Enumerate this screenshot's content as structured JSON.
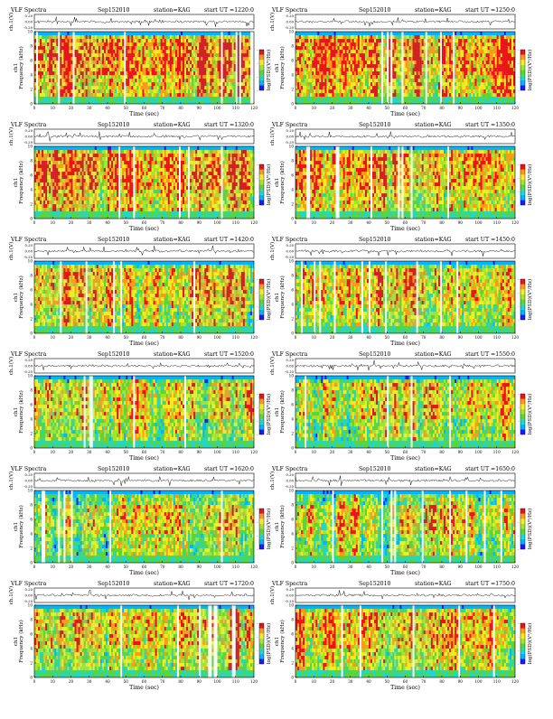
{
  "page": {
    "background": "#ffffff"
  },
  "colormap": [
    "#1a1aff",
    "#00b4ff",
    "#22d6c8",
    "#5cd43a",
    "#a6e432",
    "#f2ee22",
    "#ff9a1a",
    "#e8141a"
  ],
  "chart_data": [
    {
      "type": "heatmap",
      "title": "VLF Spectra",
      "date": "Sep152010",
      "station": "station=KAG",
      "start": "start  UT  =1220:0",
      "waveform_label": "ch.1(V)",
      "waveform_ticks": [
        "0.20",
        "0.00",
        "-0.20"
      ],
      "ylabel": "ch1\nFrequency  (kHz)",
      "y_ticks": [
        0,
        2,
        4,
        6,
        8,
        10
      ],
      "ylim": [
        0,
        10
      ],
      "xlabel": "Time  (sec)",
      "x_ticks": [
        0,
        10,
        20,
        30,
        40,
        50,
        60,
        70,
        80,
        90,
        100,
        110,
        120
      ],
      "xlim": [
        0,
        120
      ],
      "colorbar_label": "log(PSD)(V²/Hz)",
      "colorbar_ticks": [
        "-",
        "-",
        "-",
        "-"
      ],
      "band_kHz": [
        1,
        9
      ],
      "activity": 0.85,
      "seed": 11
    },
    {
      "type": "heatmap",
      "title": "VLF Spectra",
      "date": "Sep152010",
      "station": "station=KAG",
      "start": "start  UT  =1250:0",
      "waveform_label": "ch.1(V)",
      "waveform_ticks": [
        "0.20",
        "0.00",
        "-0.20"
      ],
      "ylabel": "ch1\nFrequency  (kHz)",
      "y_ticks": [
        0,
        2,
        4,
        6,
        8,
        10
      ],
      "ylim": [
        0,
        10
      ],
      "xlabel": "Time  (sec)",
      "x_ticks": [
        0,
        10,
        20,
        30,
        40,
        50,
        60,
        70,
        80,
        90,
        100,
        110,
        120
      ],
      "xlim": [
        0,
        120
      ],
      "colorbar_label": "log(PSD)(V²/Hz)",
      "colorbar_ticks": [
        "-",
        "-",
        "-",
        "-"
      ],
      "band_kHz": [
        1,
        9
      ],
      "activity": 0.8,
      "seed": 23
    },
    {
      "type": "heatmap",
      "title": "VLF Spectra",
      "date": "Sep152010",
      "station": "station=KAG",
      "start": "start  UT  =1320:0",
      "waveform_label": "ch.1(V)",
      "waveform_ticks": [
        "0.20",
        "0.00",
        "-0.20"
      ],
      "ylabel": "ch1\nFrequency  (kHz)",
      "y_ticks": [
        0,
        2,
        4,
        6,
        8,
        10
      ],
      "ylim": [
        0,
        10
      ],
      "xlabel": "Time  (sec)",
      "x_ticks": [
        0,
        10,
        20,
        30,
        40,
        50,
        60,
        70,
        80,
        90,
        100,
        110,
        120
      ],
      "xlim": [
        0,
        120
      ],
      "colorbar_label": "log(PSD)(V²/Hz)",
      "colorbar_ticks": [
        "-",
        "-",
        "-",
        "-"
      ],
      "band_kHz": [
        1,
        9
      ],
      "activity": 0.78,
      "seed": 37
    },
    {
      "type": "heatmap",
      "title": "VLF Spectra",
      "date": "Sep152010",
      "station": "station=KAG",
      "start": "start  UT  =1350:0",
      "waveform_label": "ch.1(V)",
      "waveform_ticks": [
        "0.20",
        "0.00",
        "-0.20"
      ],
      "ylabel": "ch1\nFrequency  (kHz)",
      "y_ticks": [
        0,
        2,
        4,
        6,
        8,
        10
      ],
      "ylim": [
        0,
        10
      ],
      "xlabel": "Time  (sec)",
      "x_ticks": [
        0,
        10,
        20,
        30,
        40,
        50,
        60,
        70,
        80,
        90,
        100,
        110,
        120
      ],
      "xlim": [
        0,
        120
      ],
      "colorbar_label": "log(PSD)(V²/Hz)",
      "colorbar_ticks": [
        "-",
        "-",
        "-",
        "-"
      ],
      "band_kHz": [
        1,
        9
      ],
      "activity": 0.6,
      "seed": 41
    },
    {
      "type": "heatmap",
      "title": "VLF Spectra",
      "date": "Sep152010",
      "station": "station=KAG",
      "start": "start  UT  =1420:0",
      "waveform_label": "ch.1(V)",
      "waveform_ticks": [
        "0.20",
        "0.00",
        "-0.20"
      ],
      "ylabel": "ch1\nFrequency  (kHz)",
      "y_ticks": [
        0,
        2,
        4,
        6,
        8,
        10
      ],
      "ylim": [
        0,
        10
      ],
      "xlabel": "Time  (sec)",
      "x_ticks": [
        0,
        10,
        20,
        30,
        40,
        50,
        60,
        70,
        80,
        90,
        100,
        110,
        120
      ],
      "xlim": [
        0,
        120
      ],
      "colorbar_label": "log(PSD)(V²/Hz)",
      "colorbar_ticks": [
        "-",
        "-",
        "-",
        "-"
      ],
      "band_kHz": [
        1,
        9
      ],
      "activity": 0.5,
      "seed": 53
    },
    {
      "type": "heatmap",
      "title": "VLF Spectra",
      "date": "Sep152010",
      "station": "station=KAG",
      "start": "start  UT  =1450:0",
      "waveform_label": "ch.1(V)",
      "waveform_ticks": [
        "0.20",
        "0.00",
        "-0.20"
      ],
      "ylabel": "ch1\nFrequency  (kHz)",
      "y_ticks": [
        0,
        2,
        4,
        6,
        8,
        10
      ],
      "ylim": [
        0,
        10
      ],
      "xlabel": "Time  (sec)",
      "x_ticks": [
        0,
        10,
        20,
        30,
        40,
        50,
        60,
        70,
        80,
        90,
        100,
        110,
        120
      ],
      "xlim": [
        0,
        120
      ],
      "colorbar_label": "log(PSD)(V²/Hz)",
      "colorbar_ticks": [
        "-",
        "-",
        "-",
        "-"
      ],
      "band_kHz": [
        1,
        9
      ],
      "activity": 0.55,
      "seed": 67
    },
    {
      "type": "heatmap",
      "title": "VLF Spectra",
      "date": "Sep152010",
      "station": "station=KAG",
      "start": "start  UT  =1520:0",
      "waveform_label": "ch.1(V)",
      "waveform_ticks": [
        "0.20",
        "0.00",
        "-0.20"
      ],
      "ylabel": "ch1\nFrequency  (kHz)",
      "y_ticks": [
        0,
        2,
        4,
        6,
        8,
        10
      ],
      "ylim": [
        0,
        10
      ],
      "xlabel": "Time  (sec)",
      "x_ticks": [
        0,
        10,
        20,
        30,
        40,
        50,
        60,
        70,
        80,
        90,
        100,
        110,
        120
      ],
      "xlim": [
        0,
        120
      ],
      "colorbar_label": "log(PSD)(V²/Hz)",
      "colorbar_ticks": [
        "-",
        "-",
        "-",
        "-"
      ],
      "band_kHz": [
        1,
        9
      ],
      "activity": 0.4,
      "seed": 71
    },
    {
      "type": "heatmap",
      "title": "VLF Spectra",
      "date": "Sep152010",
      "station": "station=KAG",
      "start": "start  UT  =1550:0",
      "waveform_label": "ch.1(V)",
      "waveform_ticks": [
        "0.20",
        "0.00",
        "-0.20"
      ],
      "ylabel": "ch1\nFrequency  (kHz)",
      "y_ticks": [
        0,
        2,
        4,
        6,
        8,
        10
      ],
      "ylim": [
        0,
        10
      ],
      "xlabel": "Time  (sec)",
      "x_ticks": [
        0,
        10,
        20,
        30,
        40,
        50,
        60,
        70,
        80,
        90,
        100,
        110,
        120
      ],
      "xlim": [
        0,
        120
      ],
      "colorbar_label": "log(PSD)(V²/Hz)",
      "colorbar_ticks": [
        "-",
        "-",
        "-",
        "-"
      ],
      "band_kHz": [
        1,
        9
      ],
      "activity": 0.38,
      "seed": 83
    },
    {
      "type": "heatmap",
      "title": "VLF Spectra",
      "date": "Sep152010",
      "station": "station=KAG",
      "start": "start  UT  =1620:0",
      "waveform_label": "ch.1(V)",
      "waveform_ticks": [
        "0.20",
        "0.00",
        "-0.20"
      ],
      "ylabel": "ch1\nFrequency  (kHz)",
      "y_ticks": [
        0,
        2,
        4,
        6,
        8,
        10
      ],
      "ylim": [
        0,
        10
      ],
      "xlabel": "Time  (sec)",
      "x_ticks": [
        0,
        10,
        20,
        30,
        40,
        50,
        60,
        70,
        80,
        90,
        100,
        110,
        120
      ],
      "xlim": [
        0,
        120
      ],
      "colorbar_label": "log(PSD)(V²/Hz)",
      "colorbar_ticks": [
        "-",
        "-",
        "-",
        "-"
      ],
      "band_kHz": [
        1,
        8
      ],
      "activity": 0.4,
      "seed": 97
    },
    {
      "type": "heatmap",
      "title": "VLF Spectra",
      "date": "Sep152010",
      "station": "station=KAG",
      "start": "start  UT  =1650:0",
      "waveform_label": "ch.1(V)",
      "waveform_ticks": [
        "0.20",
        "0.00",
        "-0.20"
      ],
      "ylabel": "ch1\nFrequency  (kHz)",
      "y_ticks": [
        0,
        2,
        4,
        6,
        8,
        10
      ],
      "ylim": [
        0,
        10
      ],
      "xlabel": "Time  (sec)",
      "x_ticks": [
        0,
        10,
        20,
        30,
        40,
        50,
        60,
        70,
        80,
        90,
        100,
        110,
        120
      ],
      "xlim": [
        0,
        120
      ],
      "colorbar_label": "log(PSD)(V²/Hz)",
      "colorbar_ticks": [
        "-",
        "-",
        "-",
        "-"
      ],
      "band_kHz": [
        1,
        8
      ],
      "activity": 0.45,
      "seed": 101
    },
    {
      "type": "heatmap",
      "title": "VLF Spectra",
      "date": "Sep152010",
      "station": "station=KAG",
      "start": "start  UT  =1720:0",
      "waveform_label": "ch.1(V)",
      "waveform_ticks": [
        "0.20",
        "0.00",
        "-0.20"
      ],
      "ylabel": "ch1\nFrequency  (kHz)",
      "y_ticks": [
        0,
        2,
        4,
        6,
        8,
        10
      ],
      "ylim": [
        0,
        10
      ],
      "xlabel": "Time  (sec)",
      "x_ticks": [
        0,
        10,
        20,
        30,
        40,
        50,
        60,
        70,
        80,
        90,
        100,
        110,
        120
      ],
      "xlim": [
        0,
        120
      ],
      "colorbar_label": "log(PSD)(V²/Hz)",
      "colorbar_ticks": [
        "-",
        "-",
        "-",
        "-"
      ],
      "band_kHz": [
        1,
        9
      ],
      "activity": 0.55,
      "seed": 113
    },
    {
      "type": "heatmap",
      "title": "VLF Spectra",
      "date": "Sep152010",
      "station": "station=KAG",
      "start": "start  UT  =1750:0",
      "waveform_label": "ch.1(V)",
      "waveform_ticks": [
        "0.20",
        "0.00",
        "-0.20"
      ],
      "ylabel": "ch1\nFrequency  (kHz)",
      "y_ticks": [
        0,
        2,
        4,
        6,
        8,
        10
      ],
      "ylim": [
        0,
        10
      ],
      "xlabel": "Time  (sec)",
      "x_ticks": [
        0,
        10,
        20,
        30,
        40,
        50,
        60,
        70,
        80,
        90,
        100,
        110,
        120
      ],
      "xlim": [
        0,
        120
      ],
      "colorbar_label": "log(PSD)(V²/Hz)",
      "colorbar_ticks": [
        "-",
        "-",
        "-",
        "-"
      ],
      "band_kHz": [
        1,
        9
      ],
      "activity": 0.6,
      "seed": 127
    }
  ]
}
